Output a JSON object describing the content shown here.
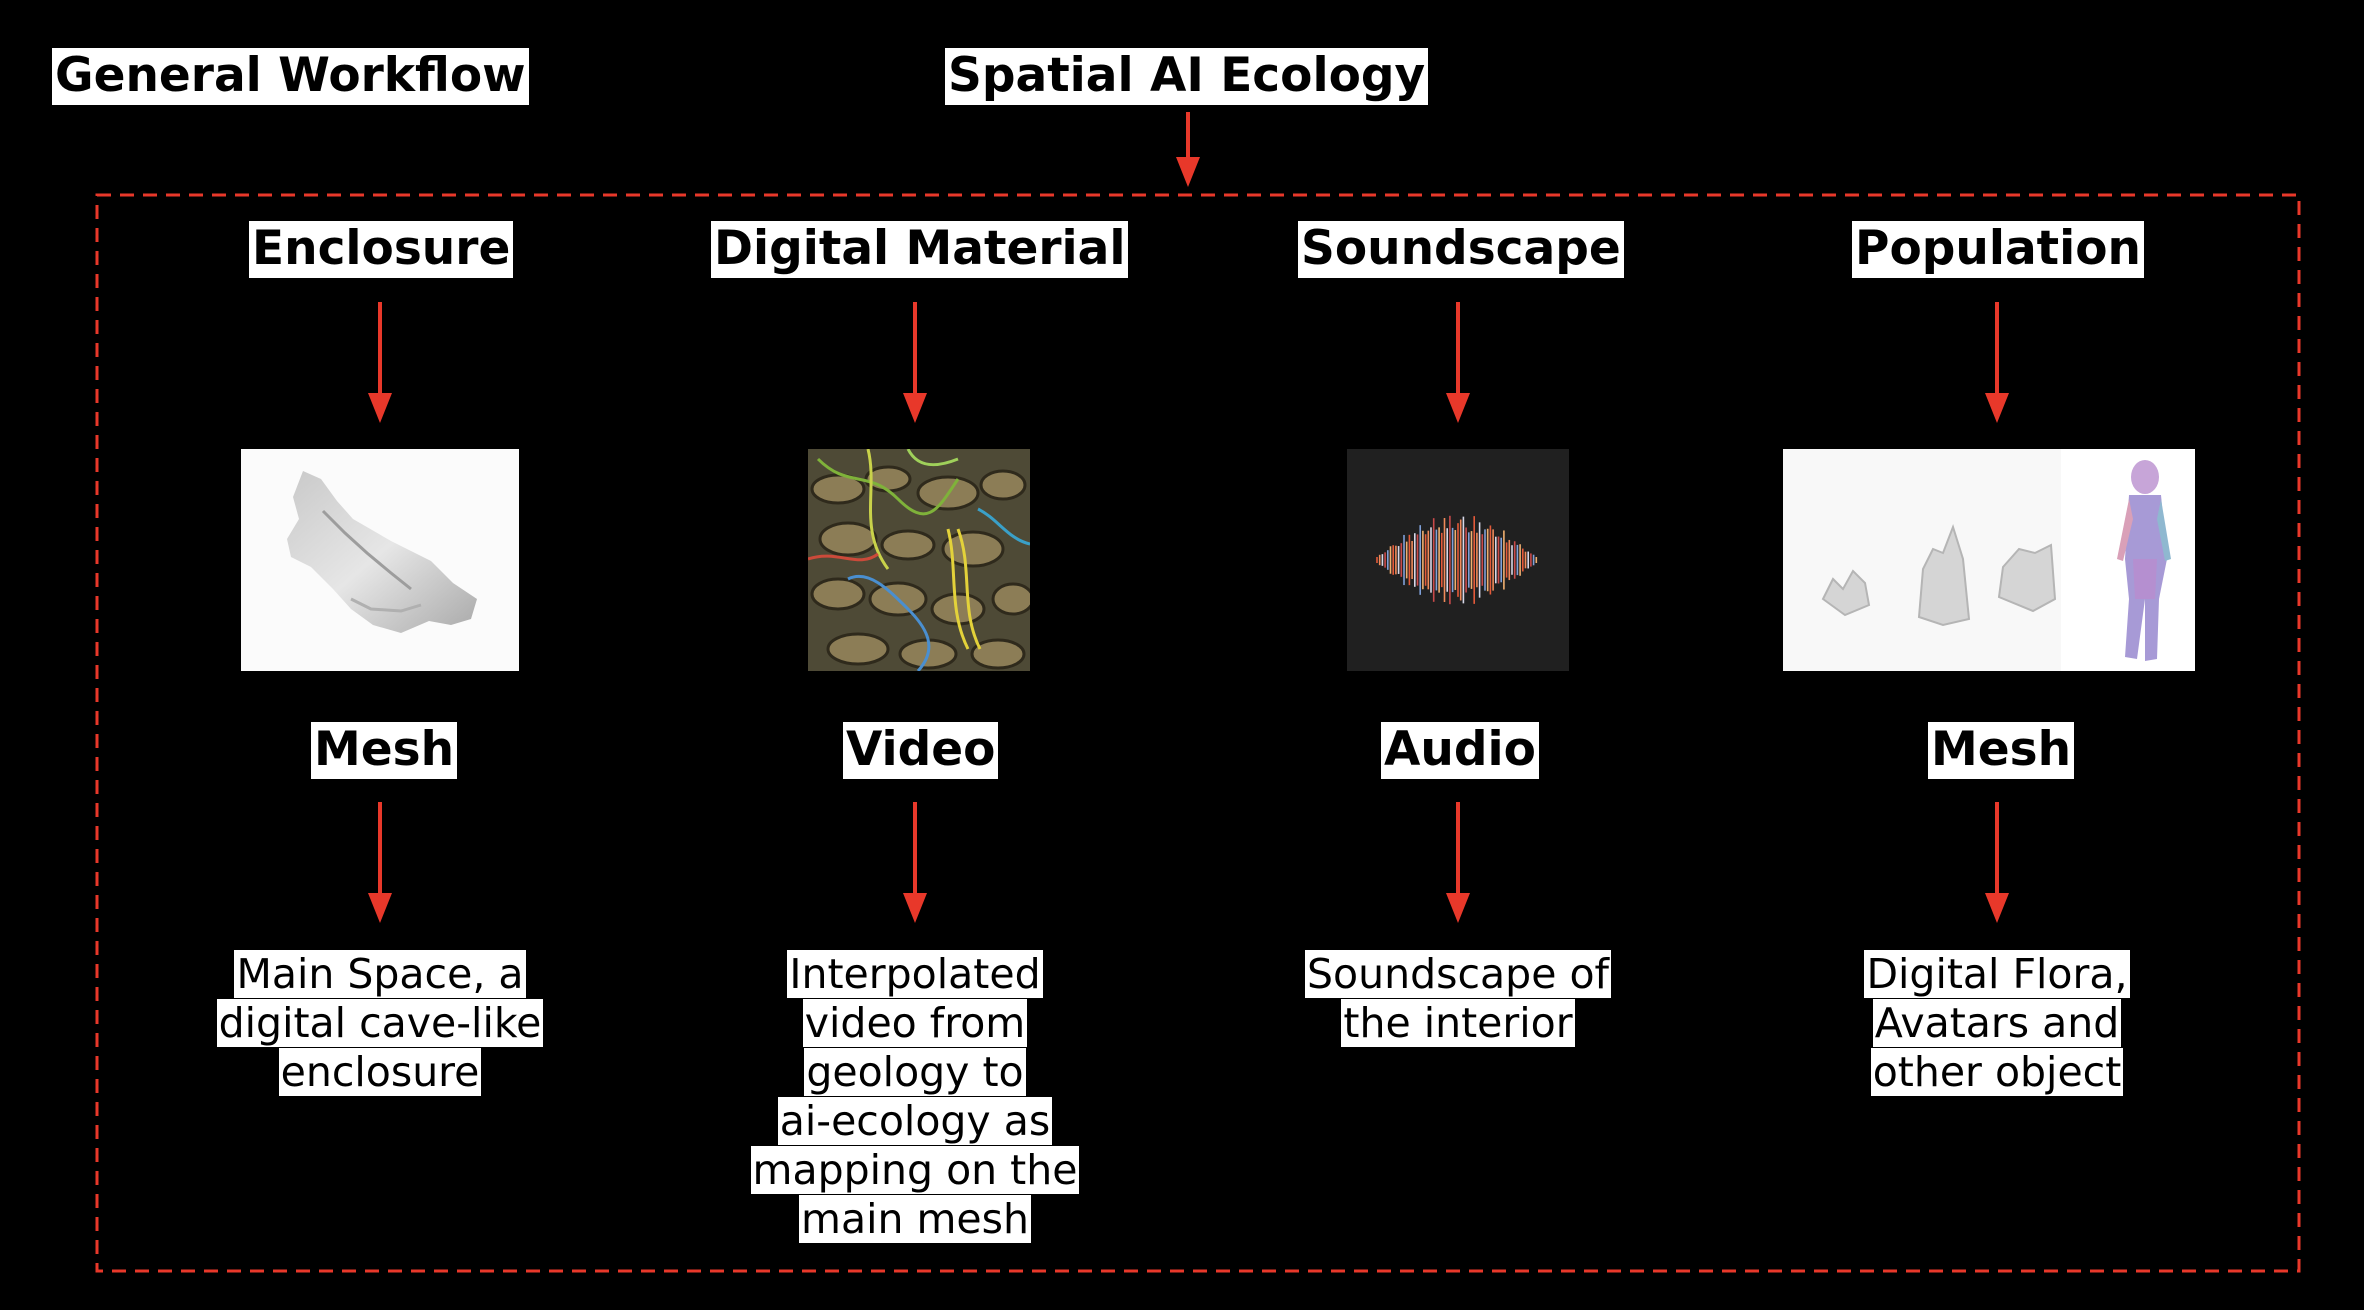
{
  "header": {
    "left_title": "General Workflow",
    "center_title": "Spatial AI Ecology"
  },
  "columns": [
    {
      "category": "Enclosure",
      "type": "Mesh",
      "description": "Main Space, a\ndigital cave-like\nenclosure",
      "image": "cave-mesh-render"
    },
    {
      "category": "Digital Material",
      "type": "Video",
      "description": "Interpolated\nvideo from\ngeology to\nai-ecology as\nmapping on the\nmain mesh",
      "image": "geology-texture"
    },
    {
      "category": "Soundscape",
      "type": "Audio",
      "description": "Soundscape of\nthe interior",
      "image": "audio-waveform"
    },
    {
      "category": "Population",
      "type": "Mesh",
      "description": "Digital Flora,\nAvatars and\nother object",
      "image": "flora-and-avatar"
    }
  ],
  "colors": {
    "background": "#000000",
    "arrow": "#e8382a",
    "frame": "#e8382a",
    "label_bg": "#ffffff"
  }
}
